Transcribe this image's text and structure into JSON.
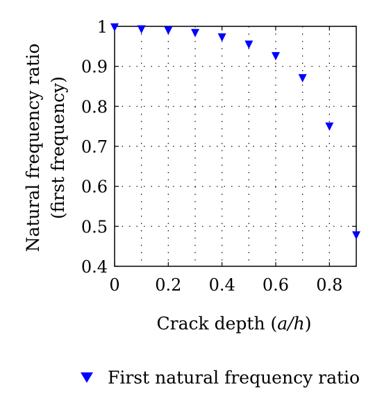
{
  "chart_data": {
    "type": "scatter",
    "title": "",
    "xlabel_prefix": "Crack depth (",
    "xlabel_var": "a/h",
    "xlabel_suffix": ")",
    "ylabel_line1": "Natural frequency ratio",
    "ylabel_line2": "(first frequency)",
    "xlim": [
      0,
      0.9
    ],
    "ylim": [
      0.4,
      1.0
    ],
    "xticks": [
      0,
      0.2,
      0.4,
      0.6,
      0.8
    ],
    "xtick_labels": [
      "0",
      "0.2",
      "0.4",
      "0.6",
      "0.8"
    ],
    "yticks": [
      0.4,
      0.5,
      0.6,
      0.7,
      0.8,
      0.9,
      1.0
    ],
    "ytick_labels": [
      "0.4",
      "0.5",
      "0.6",
      "0.7",
      "0.8",
      "0.9",
      "1"
    ],
    "grid": true,
    "grid_x": [
      0.1,
      0.2,
      0.3,
      0.4,
      0.5,
      0.6,
      0.7,
      0.8
    ],
    "grid_y": [
      0.5,
      0.6,
      0.7,
      0.8,
      0.9
    ],
    "legend_position": "bottom",
    "series": [
      {
        "name": "First natural frequency ratio",
        "marker": "triangle-down",
        "color": "#0000ff",
        "x": [
          0,
          0.1,
          0.2,
          0.3,
          0.4,
          0.5,
          0.6,
          0.7,
          0.8,
          0.9
        ],
        "y": [
          0.998,
          0.993,
          0.99,
          0.984,
          0.973,
          0.955,
          0.926,
          0.871,
          0.75,
          0.478
        ]
      }
    ]
  }
}
